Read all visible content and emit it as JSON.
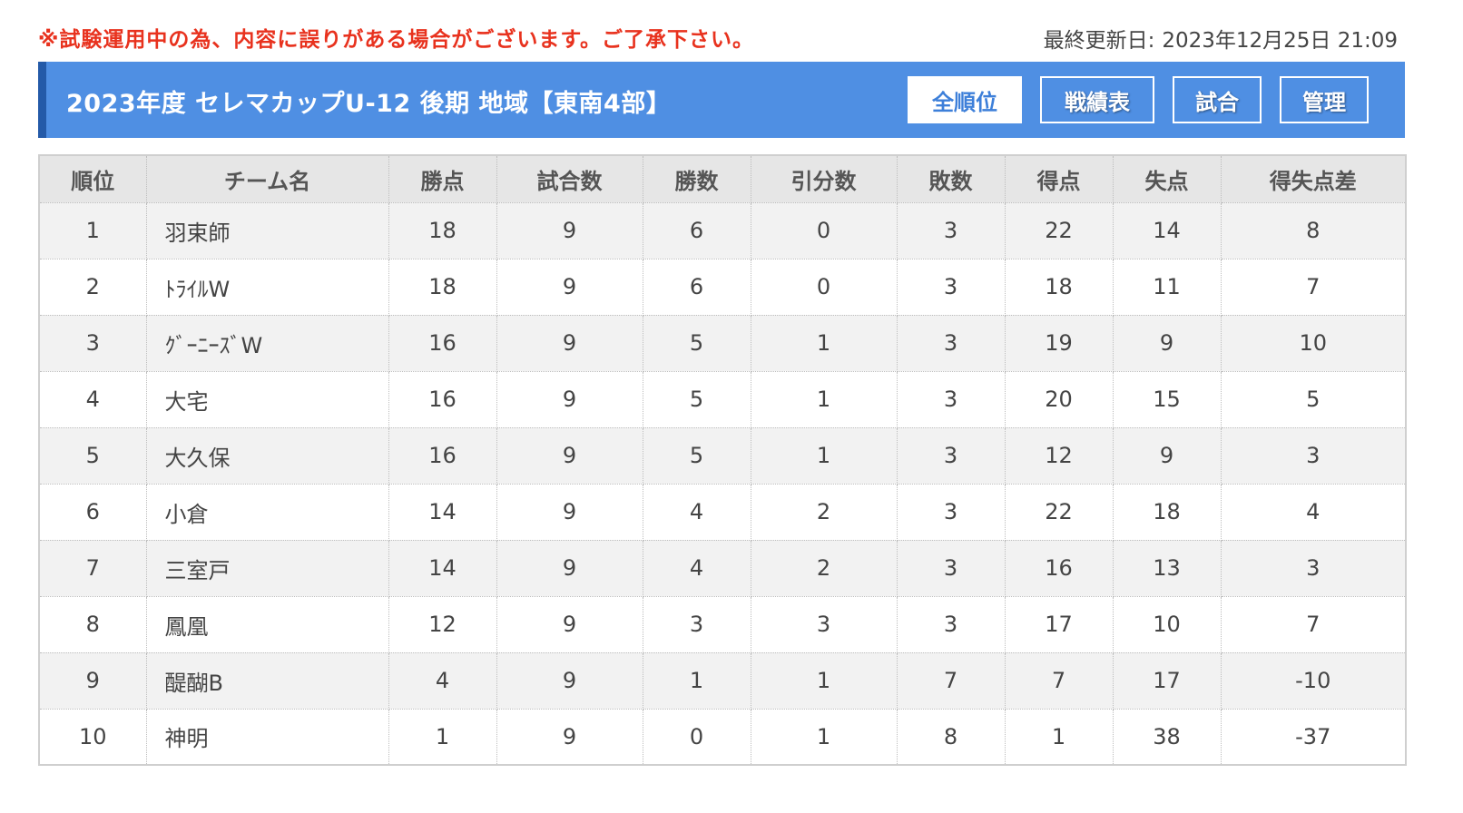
{
  "notice": "※試験運用中の為、内容に誤りがある場合がございます。ご了承下さい。",
  "updated": {
    "label": "最終更新日:",
    "value": "2023年12月25日 21:09"
  },
  "title": "2023年度 セレマカップU-12 後期 地域【東南4部】",
  "nav": [
    {
      "label": "全順位",
      "active": true
    },
    {
      "label": "戦績表",
      "active": false
    },
    {
      "label": "試合",
      "active": false
    },
    {
      "label": "管理",
      "active": false
    }
  ],
  "table": {
    "headers": [
      "順位",
      "チーム名",
      "勝点",
      "試合数",
      "勝数",
      "引分数",
      "敗数",
      "得点",
      "失点",
      "得失点差"
    ],
    "rows": [
      [
        "1",
        "羽束師",
        "18",
        "9",
        "6",
        "0",
        "3",
        "22",
        "14",
        "8"
      ],
      [
        "2",
        "ﾄﾗｲﾙW",
        "18",
        "9",
        "6",
        "0",
        "3",
        "18",
        "11",
        "7"
      ],
      [
        "3",
        "ｸﾞｰﾆｰｽﾞW",
        "16",
        "9",
        "5",
        "1",
        "3",
        "19",
        "9",
        "10"
      ],
      [
        "4",
        "大宅",
        "16",
        "9",
        "5",
        "1",
        "3",
        "20",
        "15",
        "5"
      ],
      [
        "5",
        "大久保",
        "16",
        "9",
        "5",
        "1",
        "3",
        "12",
        "9",
        "3"
      ],
      [
        "6",
        "小倉",
        "14",
        "9",
        "4",
        "2",
        "3",
        "22",
        "18",
        "4"
      ],
      [
        "7",
        "三室戸",
        "14",
        "9",
        "4",
        "2",
        "3",
        "16",
        "13",
        "3"
      ],
      [
        "8",
        "鳳凰",
        "12",
        "9",
        "3",
        "3",
        "3",
        "17",
        "10",
        "7"
      ],
      [
        "9",
        "醍醐B",
        "4",
        "9",
        "1",
        "1",
        "7",
        "7",
        "17",
        "-10"
      ],
      [
        "10",
        "神明",
        "1",
        "9",
        "0",
        "1",
        "8",
        "1",
        "38",
        "-37"
      ]
    ]
  },
  "colors": {
    "notice": "#e8321e",
    "title_bar": "#4f8fe3",
    "title_bar_edge": "#245aa8",
    "active_nav_text": "#3d7fd9"
  }
}
